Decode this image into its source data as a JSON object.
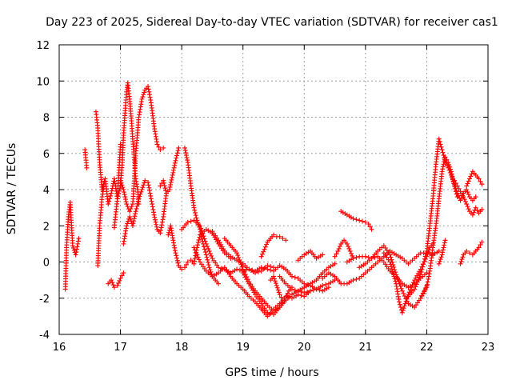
{
  "chart_data": {
    "type": "scatter",
    "title": "Day 223 of 2025, Sidereal Day-to-day VTEC variation (SDTVAR) for receiver cas1",
    "xlabel": "GPS time / hours",
    "ylabel": "SDTVAR / TECUs",
    "xlim": [
      16,
      23
    ],
    "ylim": [
      -4,
      12
    ],
    "xticks": [
      "16",
      "17",
      "18",
      "19",
      "20",
      "21",
      "22",
      "23"
    ],
    "yticks": [
      "-4",
      "-2",
      "0",
      "2",
      "4",
      "6",
      "8",
      "10",
      "12"
    ],
    "grid": true,
    "marker": "+",
    "series_color": "#ff0000",
    "series": [
      {
        "name": "trace-1",
        "x": [
          16.1,
          16.12,
          16.15,
          16.18,
          16.22,
          16.27,
          16.32
        ],
        "y": [
          -1.5,
          0.8,
          2.5,
          3.3,
          0.9,
          0.4,
          1.3
        ]
      },
      {
        "name": "trace-2",
        "x": [
          16.42,
          16.45
        ],
        "y": [
          6.2,
          5.2
        ]
      },
      {
        "name": "trace-3",
        "x": [
          16.6,
          16.63,
          16.66,
          16.7,
          16.75,
          16.8,
          16.85,
          16.9,
          16.95,
          17.0
        ],
        "y": [
          8.3,
          7.4,
          5.5,
          4.0,
          4.6,
          3.2,
          3.8,
          4.6,
          3.5,
          6.5
        ]
      },
      {
        "name": "trace-4",
        "x": [
          16.63,
          16.66,
          16.7,
          16.73
        ],
        "y": [
          -0.2,
          2.0,
          3.6,
          4.2
        ]
      },
      {
        "name": "trace-5",
        "x": [
          16.8,
          16.85,
          16.9,
          16.95,
          17.0,
          17.05
        ],
        "y": [
          -1.2,
          -1.0,
          -1.4,
          -1.3,
          -0.9,
          -0.6
        ]
      },
      {
        "name": "trace-6",
        "x": [
          16.9,
          16.95,
          17.0,
          17.03,
          17.05,
          17.08,
          17.1,
          17.12,
          17.15,
          17.18,
          17.2,
          17.23,
          17.25,
          17.28,
          17.3
        ],
        "y": [
          1.9,
          3.5,
          4.2,
          5.5,
          7.0,
          8.5,
          9.4,
          9.9,
          9.0,
          7.8,
          6.8,
          5.5,
          4.6,
          4.0,
          3.2
        ]
      },
      {
        "name": "trace-7",
        "x": [
          17.0,
          17.05,
          17.1,
          17.15,
          17.2,
          17.22,
          17.25,
          17.3,
          17.35,
          17.4,
          17.45,
          17.5,
          17.55,
          17.6,
          17.65,
          17.7
        ],
        "y": [
          4.5,
          4.0,
          3.2,
          2.8,
          3.2,
          4.2,
          6.0,
          8.0,
          9.0,
          9.5,
          9.7,
          8.8,
          7.5,
          6.5,
          6.2,
          6.3
        ]
      },
      {
        "name": "trace-8",
        "x": [
          17.05,
          17.1,
          17.15,
          17.2,
          17.25,
          17.3,
          17.35,
          17.4,
          17.45,
          17.5,
          17.55,
          17.6,
          17.65,
          17.7,
          17.75
        ],
        "y": [
          1.0,
          2.0,
          2.5,
          2.0,
          2.8,
          3.5,
          4.0,
          4.5,
          4.4,
          3.5,
          2.6,
          1.8,
          1.6,
          2.5,
          3.8
        ]
      },
      {
        "name": "trace-9",
        "x": [
          17.65,
          17.7,
          17.75,
          17.8,
          17.85,
          17.9,
          17.95
        ],
        "y": [
          4.2,
          4.5,
          3.8,
          4.0,
          4.8,
          5.6,
          6.3
        ]
      },
      {
        "name": "trace-10",
        "x": [
          17.78,
          17.82,
          17.86,
          17.9,
          17.95,
          18.0,
          18.05,
          18.1,
          18.15,
          18.2,
          18.25,
          18.3,
          18.4,
          18.5,
          18.6,
          18.7,
          18.8
        ],
        "y": [
          1.5,
          2.0,
          1.2,
          0.5,
          -0.2,
          -0.4,
          -0.3,
          0.0,
          0.1,
          -0.1,
          0.8,
          1.5,
          1.8,
          1.6,
          1.0,
          0.5,
          0.2
        ]
      },
      {
        "name": "trace-11",
        "x": [
          18.05,
          18.1,
          18.15,
          18.2,
          18.25,
          18.3,
          18.35,
          18.4,
          18.45,
          18.5,
          18.55,
          18.6
        ],
        "y": [
          6.3,
          5.5,
          4.2,
          3.0,
          2.3,
          1.8,
          1.0,
          0.4,
          -0.3,
          -0.8,
          -1.0,
          -1.2
        ]
      },
      {
        "name": "trace-12",
        "x": [
          18.0,
          18.1,
          18.2,
          18.3,
          18.4,
          18.5,
          18.6,
          18.7,
          18.8,
          18.9,
          19.0,
          19.1,
          19.2,
          19.3,
          19.4,
          19.5,
          19.6,
          19.7,
          19.8,
          19.9,
          20.0,
          20.1,
          20.2,
          20.3,
          20.4
        ],
        "y": [
          1.8,
          2.2,
          2.3,
          2.0,
          1.0,
          0.2,
          -0.3,
          -0.4,
          -0.6,
          -0.4,
          -0.5,
          -0.4,
          -0.5,
          -0.3,
          -0.4,
          -0.5,
          -0.2,
          -0.4,
          -0.8,
          -0.9,
          -1.2,
          -1.3,
          -1.5,
          -1.6,
          -1.4
        ]
      },
      {
        "name": "trace-13",
        "x": [
          18.2,
          18.3,
          18.4,
          18.5,
          18.6,
          18.7,
          18.8,
          18.9,
          19.0,
          19.1,
          19.2,
          19.3,
          19.4,
          19.5,
          19.6,
          19.7,
          19.8,
          19.9,
          20.0,
          20.1,
          20.2,
          20.3,
          20.4,
          20.5
        ],
        "y": [
          0.8,
          0.0,
          -0.5,
          -0.8,
          -0.6,
          -0.3,
          -0.8,
          -1.2,
          -1.5,
          -1.9,
          -2.2,
          -2.6,
          -3.0,
          -2.6,
          -2.3,
          -1.9,
          -2.0,
          -1.8,
          -1.9,
          -1.6,
          -1.5,
          -1.3,
          -1.2,
          -1.0
        ]
      },
      {
        "name": "trace-14",
        "x": [
          18.5,
          18.6,
          18.7,
          18.8,
          18.9,
          19.0,
          19.1,
          19.2,
          19.3,
          19.4,
          19.5
        ],
        "y": [
          1.7,
          1.2,
          0.6,
          0.3,
          0.1,
          -0.1,
          -0.4,
          -0.6,
          -0.5,
          -0.2,
          -0.3
        ]
      },
      {
        "name": "trace-15",
        "x": [
          18.7,
          18.8,
          18.9,
          19.0,
          19.1,
          19.2,
          19.3,
          19.4,
          19.5,
          19.6,
          19.7
        ],
        "y": [
          1.3,
          0.9,
          0.5,
          -0.4,
          -1.1,
          -1.6,
          -2.0,
          -2.4,
          -2.7,
          -2.5,
          -2.0
        ]
      },
      {
        "name": "trace-16",
        "x": [
          19.0,
          19.1,
          19.2,
          19.3,
          19.4,
          19.5,
          19.6,
          19.7,
          19.8,
          19.9,
          20.0,
          20.1
        ],
        "y": [
          -0.6,
          -1.2,
          -1.8,
          -2.3,
          -2.8,
          -2.9,
          -2.5,
          -2.1,
          -1.8,
          -1.6,
          -1.7,
          -1.6
        ]
      },
      {
        "name": "trace-17",
        "x": [
          19.3,
          19.35,
          19.4,
          19.45,
          19.5,
          19.55,
          19.6,
          19.65,
          19.7
        ],
        "y": [
          0.3,
          0.7,
          1.1,
          1.3,
          1.5,
          1.4,
          1.4,
          1.3,
          1.2
        ]
      },
      {
        "name": "trace-18",
        "x": [
          19.45,
          19.5,
          19.55,
          19.6,
          19.65,
          19.7,
          19.75,
          19.8
        ],
        "y": [
          -1.0,
          -0.8,
          -1.3,
          -1.8,
          -2.1,
          -2.0,
          -1.6,
          -1.4
        ]
      },
      {
        "name": "trace-19",
        "x": [
          19.6,
          19.7,
          19.8,
          19.9,
          20.0,
          20.1,
          20.2,
          20.3,
          20.4,
          20.5
        ],
        "y": [
          -0.8,
          -1.2,
          -1.5,
          -1.6,
          -1.4,
          -1.2,
          -1.0,
          -0.6,
          -0.3,
          -0.1
        ]
      },
      {
        "name": "trace-20",
        "x": [
          19.9,
          20.0,
          20.1,
          20.2,
          20.3
        ],
        "y": [
          0.1,
          0.4,
          0.6,
          0.2,
          0.4
        ]
      },
      {
        "name": "trace-21",
        "x": [
          20.3,
          20.4,
          20.5,
          20.6,
          20.7,
          20.8,
          20.9,
          21.0,
          21.1,
          21.2,
          21.3,
          21.4,
          21.5,
          21.6,
          21.7,
          21.8,
          21.9,
          22.0,
          22.1,
          22.2
        ],
        "y": [
          -0.9,
          -0.6,
          -0.8,
          -1.2,
          -1.2,
          -1.0,
          -0.9,
          -0.6,
          -0.3,
          0.0,
          0.3,
          0.6,
          0.4,
          0.2,
          -0.1,
          0.2,
          0.5,
          0.5,
          0.4,
          0.6
        ]
      },
      {
        "name": "trace-22",
        "x": [
          20.5,
          20.55,
          20.6,
          20.65,
          20.7,
          20.75,
          20.8
        ],
        "y": [
          0.3,
          0.6,
          1.0,
          1.2,
          1.0,
          0.6,
          0.2
        ]
      },
      {
        "name": "trace-23",
        "x": [
          20.6,
          20.7,
          20.8,
          20.9,
          21.0,
          21.05,
          21.1
        ],
        "y": [
          2.8,
          2.6,
          2.4,
          2.3,
          2.2,
          2.1,
          1.8
        ]
      },
      {
        "name": "trace-24",
        "x": [
          20.7,
          20.8,
          20.9,
          21.0,
          21.1,
          21.2,
          21.3,
          21.4,
          21.5,
          21.6,
          21.7,
          21.8,
          21.9,
          22.0
        ],
        "y": [
          0.0,
          0.2,
          0.3,
          0.3,
          0.2,
          0.3,
          0.0,
          -0.5,
          -0.8,
          -1.2,
          -1.4,
          -1.2,
          -0.9,
          -0.6
        ]
      },
      {
        "name": "trace-25",
        "x": [
          20.9,
          21.0,
          21.1,
          21.2,
          21.3,
          21.4,
          21.5,
          21.6,
          21.7,
          21.8,
          21.9,
          22.0
        ],
        "y": [
          -0.3,
          -0.1,
          0.2,
          0.6,
          0.9,
          0.4,
          -0.7,
          -1.6,
          -2.3,
          -2.5,
          -2.0,
          -1.3
        ]
      },
      {
        "name": "trace-26",
        "x": [
          21.3,
          21.4,
          21.5,
          21.55,
          21.6,
          21.65,
          21.7,
          21.8,
          21.9,
          22.0,
          22.05,
          22.1
        ],
        "y": [
          0.5,
          0.0,
          -1.2,
          -2.2,
          -2.8,
          -2.3,
          -1.8,
          -1.0,
          -0.4,
          0.3,
          0.8,
          1.0
        ]
      },
      {
        "name": "trace-27",
        "x": [
          21.7,
          21.8,
          21.9,
          22.0,
          22.05,
          22.1,
          22.15,
          22.2,
          22.25,
          22.3,
          22.35,
          22.4,
          22.45,
          22.5,
          22.55,
          22.6,
          22.65,
          22.7,
          22.75,
          22.8
        ],
        "y": [
          -1.9,
          -1.5,
          -0.7,
          0.6,
          2.0,
          3.5,
          5.4,
          6.8,
          6.2,
          5.6,
          5.2,
          4.8,
          4.3,
          3.8,
          3.4,
          3.8,
          4.0,
          3.6,
          3.4,
          3.6
        ]
      },
      {
        "name": "trace-28",
        "x": [
          21.9,
          22.0,
          22.05,
          22.1,
          22.15,
          22.2,
          22.25,
          22.3,
          22.35,
          22.4,
          22.45,
          22.5
        ],
        "y": [
          -2.0,
          -1.4,
          -0.5,
          0.8,
          2.0,
          3.5,
          5.0,
          5.8,
          5.5,
          5.0,
          4.2,
          3.6
        ]
      },
      {
        "name": "trace-29",
        "x": [
          22.2,
          22.25,
          22.3
        ],
        "y": [
          -0.1,
          0.4,
          1.2
        ]
      },
      {
        "name": "trace-30",
        "x": [
          22.45,
          22.5,
          22.55,
          22.6,
          22.65,
          22.7,
          22.75,
          22.8,
          22.85,
          22.9
        ],
        "y": [
          4.5,
          4.2,
          3.9,
          3.6,
          3.2,
          2.8,
          2.6,
          3.0,
          2.7,
          2.9
        ]
      },
      {
        "name": "trace-31",
        "x": [
          22.55,
          22.6,
          22.65,
          22.7,
          22.75,
          22.8,
          22.85,
          22.9
        ],
        "y": [
          -0.1,
          0.4,
          0.6,
          0.5,
          0.4,
          0.6,
          0.8,
          1.1
        ]
      },
      {
        "name": "trace-32",
        "x": [
          22.65,
          22.7,
          22.75,
          22.8,
          22.85,
          22.9
        ],
        "y": [
          4.2,
          4.6,
          5.0,
          4.8,
          4.6,
          4.3
        ]
      }
    ]
  }
}
